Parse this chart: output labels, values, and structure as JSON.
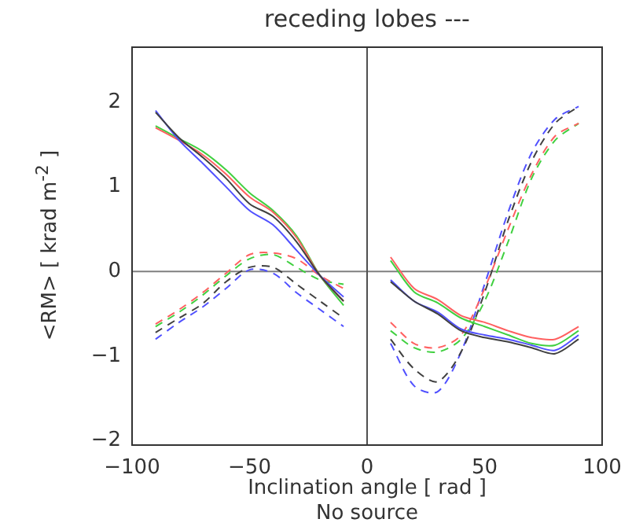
{
  "chart_data": {
    "type": "line",
    "title": "receding lobes ---",
    "xlabel": "Inclination angle [ rad ]",
    "ylabel": "<RM> [ krad m$^{-2}$ ]",
    "annotations": [
      "No source"
    ],
    "x": [
      -90,
      -80,
      -70,
      -60,
      -50,
      -40,
      -30,
      -20,
      -10,
      0,
      10,
      20,
      30,
      40,
      50,
      60,
      70,
      80,
      90
    ],
    "xlim": [
      -100,
      100
    ],
    "xticks": [
      -100,
      -50,
      0,
      50,
      100
    ],
    "ylim": [
      -2.05,
      2.65
    ],
    "yticks": [
      -2,
      -1,
      0,
      1,
      2
    ],
    "grid": false,
    "legend": false,
    "marker": "none",
    "series": [
      {
        "color": "#404040",
        "line_style": "solid",
        "values": [
          1.88,
          1.58,
          1.35,
          1.1,
          0.8,
          0.65,
          0.35,
          -0.05,
          -0.35,
          null,
          -0.12,
          -0.35,
          -0.5,
          -0.7,
          -0.78,
          -0.83,
          -0.9,
          -0.97,
          -0.8
        ]
      },
      {
        "color": "#5050ff",
        "line_style": "solid",
        "values": [
          1.9,
          1.55,
          1.28,
          1.0,
          0.72,
          0.55,
          0.25,
          -0.05,
          -0.3,
          null,
          -0.1,
          -0.35,
          -0.48,
          -0.68,
          -0.75,
          -0.8,
          -0.87,
          -0.93,
          -0.75
        ]
      },
      {
        "color": "#ff6060",
        "line_style": "solid",
        "values": [
          1.7,
          1.55,
          1.38,
          1.15,
          0.88,
          0.7,
          0.4,
          -0.05,
          -0.35,
          null,
          0.17,
          -0.2,
          -0.33,
          -0.52,
          -0.6,
          -0.7,
          -0.78,
          -0.8,
          -0.65
        ]
      },
      {
        "color": "#40d040",
        "line_style": "solid",
        "values": [
          1.72,
          1.57,
          1.42,
          1.2,
          0.93,
          0.72,
          0.42,
          -0.05,
          -0.4,
          null,
          0.13,
          -0.24,
          -0.37,
          -0.55,
          -0.65,
          -0.75,
          -0.85,
          -0.87,
          -0.7
        ]
      },
      {
        "color": "#ff6060",
        "line_style": "dashed",
        "values": [
          -0.62,
          -0.45,
          -0.25,
          -0.02,
          0.2,
          0.22,
          0.15,
          -0.05,
          -0.2,
          null,
          -0.6,
          -0.85,
          -0.9,
          -0.75,
          -0.2,
          0.5,
          1.15,
          1.6,
          1.75
        ]
      },
      {
        "color": "#40d040",
        "line_style": "dashed",
        "values": [
          -0.65,
          -0.48,
          -0.28,
          -0.05,
          0.15,
          0.2,
          0.05,
          -0.1,
          -0.15,
          null,
          -0.7,
          -0.9,
          -0.95,
          -0.8,
          -0.35,
          0.35,
          1.1,
          1.55,
          1.75
        ]
      },
      {
        "color": "#404040",
        "line_style": "dashed",
        "values": [
          -0.72,
          -0.55,
          -0.38,
          -0.12,
          0.05,
          0.05,
          -0.15,
          -0.35,
          -0.55,
          null,
          -0.8,
          -1.15,
          -1.3,
          -0.95,
          -0.25,
          0.6,
          1.3,
          1.75,
          1.95
        ]
      },
      {
        "color": "#5050ff",
        "line_style": "dashed",
        "values": [
          -0.8,
          -0.6,
          -0.42,
          -0.2,
          0.02,
          -0.02,
          -0.25,
          -0.45,
          -0.65,
          null,
          -0.85,
          -1.35,
          -1.42,
          -0.95,
          -0.15,
          0.7,
          1.4,
          1.8,
          1.95
        ]
      }
    ],
    "ref_lines": [
      {
        "axis": "y",
        "value": 0,
        "color": "#808080"
      },
      {
        "axis": "x",
        "value": 0,
        "color": "#505050"
      }
    ]
  }
}
